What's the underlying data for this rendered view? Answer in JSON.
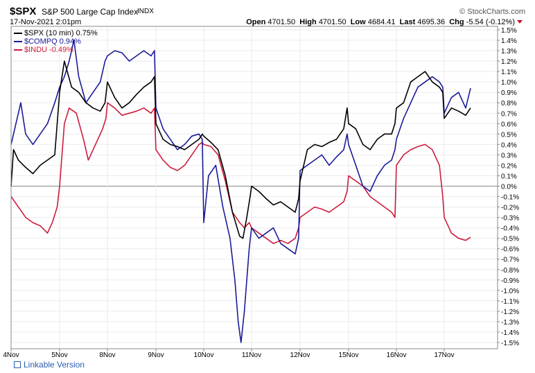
{
  "header": {
    "symbol": "$SPX",
    "description": "S&P 500 Large Cap Index",
    "exchange": "INDX",
    "brand": "© StockCharts.com",
    "datetime": "17-Nov-2021 2:01pm",
    "quote": {
      "open_label": "Open",
      "open": "4701.50",
      "high_label": "High",
      "high": "4701.50",
      "low_label": "Low",
      "low": "4684.41",
      "last_label": "Last",
      "last": "4695.36",
      "chg_label": "Chg",
      "chg": "-5.54 (-0.12%)"
    }
  },
  "legend": [
    {
      "label": "$SPX (10 min) 0.75%",
      "color": "#000000"
    },
    {
      "label": "$COMPQ 0.94%",
      "color": "#1a1a99"
    },
    {
      "label": "$INDU -0.49%",
      "color": "#cc1b3b"
    }
  ],
  "link_text": "Linkable Version",
  "chart_data": {
    "type": "line",
    "x_tick_labels": [
      "4Nov",
      "5Nov",
      "8Nov",
      "9Nov",
      "10Nov",
      "11Nov",
      "12Nov",
      "15Nov",
      "16Nov",
      "17Nov"
    ],
    "y_tick_labels": [
      "1.5%",
      "1.4%",
      "1.3%",
      "1.2%",
      "1.1%",
      "1.0%",
      "0.9%",
      "0.8%",
      "0.7%",
      "0.6%",
      "0.5%",
      "0.4%",
      "0.3%",
      "0.2%",
      "0.1%",
      "0.0%",
      "-0.1%",
      "-0.2%",
      "-0.3%",
      "-0.4%",
      "-0.5%",
      "-0.6%",
      "-0.7%",
      "-0.8%",
      "-0.9%",
      "-1.0%",
      "-1.1%",
      "-1.2%",
      "-1.3%",
      "-1.4%",
      "-1.5%"
    ],
    "ylim": [
      -1.5,
      1.5
    ],
    "y_unit": "%",
    "grid": true,
    "legend_position": "top-left",
    "series": [
      {
        "name": "$SPX (10 min) 0.75%",
        "color": "#000000",
        "points": [
          [
            0,
            0.0
          ],
          [
            0.05,
            0.35
          ],
          [
            0.15,
            0.25
          ],
          [
            0.3,
            0.18
          ],
          [
            0.45,
            0.12
          ],
          [
            0.6,
            0.2
          ],
          [
            0.75,
            0.25
          ],
          [
            0.9,
            0.3
          ],
          [
            1.0,
            0.9
          ],
          [
            1.1,
            1.2
          ],
          [
            1.25,
            0.95
          ],
          [
            1.4,
            0.9
          ],
          [
            1.55,
            0.8
          ],
          [
            1.7,
            0.75
          ],
          [
            1.85,
            0.72
          ],
          [
            1.95,
            0.8
          ],
          [
            2.0,
            1.0
          ],
          [
            2.15,
            0.85
          ],
          [
            2.3,
            0.75
          ],
          [
            2.45,
            0.8
          ],
          [
            2.6,
            0.88
          ],
          [
            2.75,
            0.95
          ],
          [
            2.9,
            1.0
          ],
          [
            2.97,
            1.05
          ],
          [
            3.0,
            0.6
          ],
          [
            3.15,
            0.45
          ],
          [
            3.3,
            0.4
          ],
          [
            3.45,
            0.38
          ],
          [
            3.6,
            0.35
          ],
          [
            3.75,
            0.4
          ],
          [
            3.9,
            0.45
          ],
          [
            3.97,
            0.5
          ],
          [
            4.0,
            0.48
          ],
          [
            4.15,
            0.42
          ],
          [
            4.3,
            0.35
          ],
          [
            4.45,
            0.1
          ],
          [
            4.6,
            -0.25
          ],
          [
            4.75,
            -0.48
          ],
          [
            4.82,
            -0.5
          ],
          [
            4.9,
            -0.3
          ],
          [
            4.97,
            -0.1
          ],
          [
            5.0,
            0.0
          ],
          [
            5.15,
            -0.05
          ],
          [
            5.3,
            -0.12
          ],
          [
            5.45,
            -0.18
          ],
          [
            5.6,
            -0.15
          ],
          [
            5.75,
            -0.2
          ],
          [
            5.9,
            -0.25
          ],
          [
            5.97,
            -0.12
          ],
          [
            6.0,
            0.05
          ],
          [
            6.15,
            0.35
          ],
          [
            6.3,
            0.4
          ],
          [
            6.45,
            0.38
          ],
          [
            6.6,
            0.42
          ],
          [
            6.75,
            0.45
          ],
          [
            6.9,
            0.55
          ],
          [
            6.97,
            0.75
          ],
          [
            7.0,
            0.6
          ],
          [
            7.15,
            0.55
          ],
          [
            7.3,
            0.4
          ],
          [
            7.45,
            0.35
          ],
          [
            7.6,
            0.45
          ],
          [
            7.75,
            0.5
          ],
          [
            7.9,
            0.5
          ],
          [
            7.97,
            0.6
          ],
          [
            8.0,
            0.75
          ],
          [
            8.15,
            0.8
          ],
          [
            8.3,
            1.0
          ],
          [
            8.45,
            1.05
          ],
          [
            8.6,
            1.1
          ],
          [
            8.75,
            1.0
          ],
          [
            8.9,
            0.95
          ],
          [
            8.97,
            0.9
          ],
          [
            9.0,
            0.65
          ],
          [
            9.15,
            0.75
          ],
          [
            9.3,
            0.72
          ],
          [
            9.45,
            0.68
          ],
          [
            9.55,
            0.75
          ]
        ]
      },
      {
        "name": "$COMPQ 0.94%",
        "color": "#1a1a99",
        "points": [
          [
            0,
            0.4
          ],
          [
            0.1,
            0.6
          ],
          [
            0.2,
            0.8
          ],
          [
            0.3,
            0.5
          ],
          [
            0.45,
            0.4
          ],
          [
            0.6,
            0.5
          ],
          [
            0.75,
            0.6
          ],
          [
            0.9,
            0.8
          ],
          [
            1.0,
            0.95
          ],
          [
            1.1,
            1.05
          ],
          [
            1.2,
            1.2
          ],
          [
            1.3,
            1.4
          ],
          [
            1.4,
            1.05
          ],
          [
            1.55,
            0.8
          ],
          [
            1.7,
            0.9
          ],
          [
            1.85,
            1.0
          ],
          [
            1.95,
            1.2
          ],
          [
            2.0,
            1.25
          ],
          [
            2.15,
            1.3
          ],
          [
            2.3,
            1.28
          ],
          [
            2.45,
            1.2
          ],
          [
            2.6,
            1.25
          ],
          [
            2.75,
            1.3
          ],
          [
            2.9,
            1.25
          ],
          [
            2.97,
            1.3
          ],
          [
            3.0,
            0.75
          ],
          [
            3.15,
            0.55
          ],
          [
            3.3,
            0.45
          ],
          [
            3.45,
            0.35
          ],
          [
            3.6,
            0.4
          ],
          [
            3.75,
            0.48
          ],
          [
            3.9,
            0.5
          ],
          [
            3.97,
            0.45
          ],
          [
            4.0,
            -0.35
          ],
          [
            4.1,
            0.1
          ],
          [
            4.25,
            0.2
          ],
          [
            4.4,
            -0.2
          ],
          [
            4.55,
            -0.5
          ],
          [
            4.65,
            -0.9
          ],
          [
            4.72,
            -1.3
          ],
          [
            4.78,
            -1.5
          ],
          [
            4.85,
            -1.2
          ],
          [
            4.95,
            -0.6
          ],
          [
            5.0,
            -0.4
          ],
          [
            5.15,
            -0.5
          ],
          [
            5.3,
            -0.45
          ],
          [
            5.45,
            -0.4
          ],
          [
            5.6,
            -0.55
          ],
          [
            5.75,
            -0.6
          ],
          [
            5.9,
            -0.65
          ],
          [
            5.97,
            -0.5
          ],
          [
            6.0,
            0.15
          ],
          [
            6.15,
            0.2
          ],
          [
            6.3,
            0.25
          ],
          [
            6.45,
            0.3
          ],
          [
            6.6,
            0.2
          ],
          [
            6.75,
            0.28
          ],
          [
            6.9,
            0.35
          ],
          [
            6.97,
            0.5
          ],
          [
            7.0,
            0.4
          ],
          [
            7.15,
            0.2
          ],
          [
            7.3,
            0.0
          ],
          [
            7.45,
            -0.05
          ],
          [
            7.6,
            0.1
          ],
          [
            7.75,
            0.2
          ],
          [
            7.9,
            0.25
          ],
          [
            7.97,
            0.35
          ],
          [
            8.0,
            0.45
          ],
          [
            8.15,
            0.65
          ],
          [
            8.3,
            0.8
          ],
          [
            8.45,
            0.95
          ],
          [
            8.6,
            1.0
          ],
          [
            8.75,
            1.05
          ],
          [
            8.9,
            1.0
          ],
          [
            8.97,
            0.95
          ],
          [
            9.0,
            0.7
          ],
          [
            9.15,
            0.85
          ],
          [
            9.3,
            0.9
          ],
          [
            9.45,
            0.75
          ],
          [
            9.55,
            0.94
          ]
        ]
      },
      {
        "name": "$INDU -0.49%",
        "color": "#cc1b3b",
        "points": [
          [
            0,
            -0.1
          ],
          [
            0.15,
            -0.2
          ],
          [
            0.3,
            -0.3
          ],
          [
            0.45,
            -0.35
          ],
          [
            0.6,
            -0.38
          ],
          [
            0.75,
            -0.45
          ],
          [
            0.85,
            -0.35
          ],
          [
            0.95,
            -0.2
          ],
          [
            1.0,
            0.0
          ],
          [
            1.1,
            0.6
          ],
          [
            1.2,
            0.75
          ],
          [
            1.35,
            0.7
          ],
          [
            1.5,
            0.45
          ],
          [
            1.6,
            0.25
          ],
          [
            1.75,
            0.4
          ],
          [
            1.9,
            0.55
          ],
          [
            1.97,
            0.65
          ],
          [
            2.0,
            0.8
          ],
          [
            2.15,
            0.75
          ],
          [
            2.3,
            0.68
          ],
          [
            2.45,
            0.7
          ],
          [
            2.6,
            0.72
          ],
          [
            2.75,
            0.75
          ],
          [
            2.9,
            0.7
          ],
          [
            2.97,
            0.75
          ],
          [
            3.0,
            0.35
          ],
          [
            3.15,
            0.25
          ],
          [
            3.3,
            0.18
          ],
          [
            3.45,
            0.15
          ],
          [
            3.6,
            0.2
          ],
          [
            3.75,
            0.3
          ],
          [
            3.9,
            0.4
          ],
          [
            3.97,
            0.42
          ],
          [
            4.0,
            0.4
          ],
          [
            4.15,
            0.38
          ],
          [
            4.3,
            0.3
          ],
          [
            4.45,
            0.05
          ],
          [
            4.6,
            -0.25
          ],
          [
            4.75,
            -0.35
          ],
          [
            4.85,
            -0.4
          ],
          [
            4.95,
            -0.35
          ],
          [
            5.0,
            -0.4
          ],
          [
            5.15,
            -0.45
          ],
          [
            5.3,
            -0.5
          ],
          [
            5.45,
            -0.55
          ],
          [
            5.6,
            -0.52
          ],
          [
            5.75,
            -0.55
          ],
          [
            5.9,
            -0.5
          ],
          [
            5.97,
            -0.4
          ],
          [
            6.0,
            -0.3
          ],
          [
            6.15,
            -0.25
          ],
          [
            6.3,
            -0.2
          ],
          [
            6.45,
            -0.22
          ],
          [
            6.6,
            -0.25
          ],
          [
            6.75,
            -0.2
          ],
          [
            6.9,
            -0.15
          ],
          [
            6.97,
            -0.05
          ],
          [
            7.0,
            0.1
          ],
          [
            7.15,
            0.05
          ],
          [
            7.3,
            0.0
          ],
          [
            7.45,
            -0.1
          ],
          [
            7.6,
            -0.15
          ],
          [
            7.75,
            -0.2
          ],
          [
            7.9,
            -0.25
          ],
          [
            7.97,
            -0.3
          ],
          [
            8.0,
            0.2
          ],
          [
            8.15,
            0.3
          ],
          [
            8.3,
            0.35
          ],
          [
            8.45,
            0.38
          ],
          [
            8.6,
            0.4
          ],
          [
            8.75,
            0.35
          ],
          [
            8.9,
            0.2
          ],
          [
            8.97,
            -0.1
          ],
          [
            9.0,
            -0.3
          ],
          [
            9.15,
            -0.45
          ],
          [
            9.3,
            -0.5
          ],
          [
            9.45,
            -0.52
          ],
          [
            9.55,
            -0.49
          ]
        ]
      }
    ]
  }
}
